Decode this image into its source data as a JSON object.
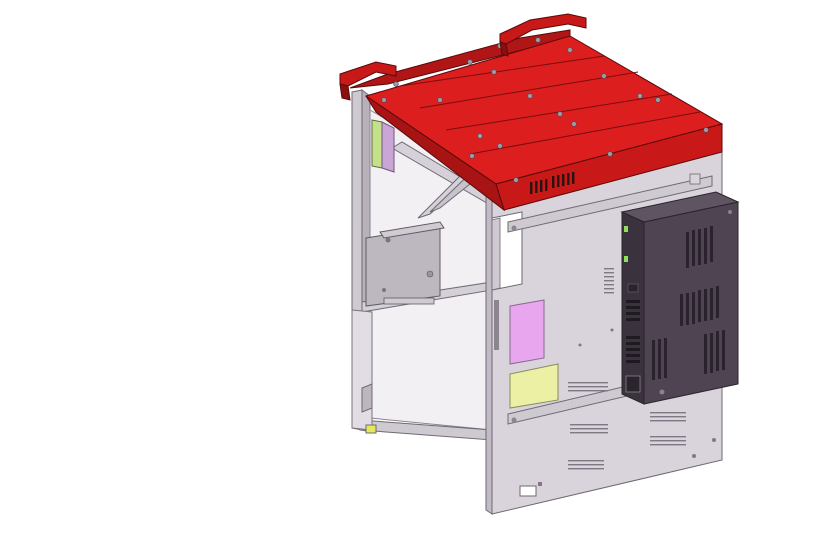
{
  "model": {
    "parts": [
      "top-cover",
      "left-handle",
      "right-handle",
      "left-side-frame",
      "front-panel",
      "power-supply-unit",
      "magenta-label",
      "yellow-label",
      "cross-brace",
      "mounting-bracket"
    ],
    "colors": {
      "top_cover": "#dd1e1e",
      "top_cover_dark": "#b01616",
      "handle": "#c81818",
      "frame": "#d8d2da",
      "frame_edge": "#6e6a72",
      "panel": "#d9d3db",
      "psu": "#4e4452",
      "psu_dark": "#3a323d",
      "magenta_label": "#e7a6ee",
      "yellow_label": "#ecf0a4",
      "background": "#ffffff"
    }
  }
}
